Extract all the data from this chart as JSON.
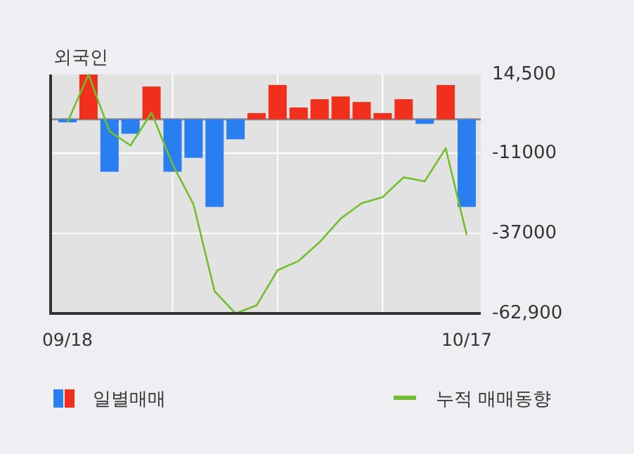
{
  "chart_data": {
    "type": "bar",
    "title": "외국인",
    "categories": [
      "09/18",
      null,
      null,
      null,
      null,
      null,
      null,
      null,
      null,
      null,
      null,
      null,
      null,
      null,
      null,
      null,
      null,
      null,
      null,
      "10/17"
    ],
    "series": [
      {
        "name": "일별매매",
        "colors": [
          "#2a7ff0",
          "#f0301c",
          "#2a7ff0",
          "#2a7ff0",
          "#f0301c",
          "#2a7ff0",
          "#2a7ff0",
          "#2a7ff0",
          "#2a7ff0",
          "#f0301c",
          "#f0301c",
          "#f0301c",
          "#f0301c",
          "#f0301c",
          "#f0301c",
          "#f0301c",
          "#f0301c",
          "#2a7ff0",
          "#f0301c",
          "#2a7ff0"
        ],
        "values": [
          -1000,
          14500,
          -17000,
          -4700,
          10600,
          -17000,
          -12500,
          -28400,
          -6500,
          2000,
          11100,
          3800,
          6500,
          7400,
          5600,
          2000,
          6500,
          -1500,
          11100,
          -28400
        ]
      },
      {
        "name": "누적 매매동향",
        "type": "line",
        "color": "#72bf2c",
        "values": [
          -1000,
          14500,
          -3900,
          -8500,
          2100,
          -14600,
          -27600,
          -55700,
          -62900,
          -60300,
          -48900,
          -45900,
          -39800,
          -32200,
          -27200,
          -25200,
          -18800,
          -20100,
          -9400,
          -37500
        ]
      }
    ],
    "ylim": [
      -62900,
      14500
    ],
    "yticks": [
      {
        "value": 14500,
        "label": "14,500"
      },
      -11000,
      -37000,
      {
        "value": -62900,
        "label": "-62,900"
      }
    ],
    "ref_lines": [
      {
        "axis": "y",
        "value": 0,
        "color": "#8c8c8c"
      }
    ],
    "grid": true,
    "legend": "bottom"
  }
}
